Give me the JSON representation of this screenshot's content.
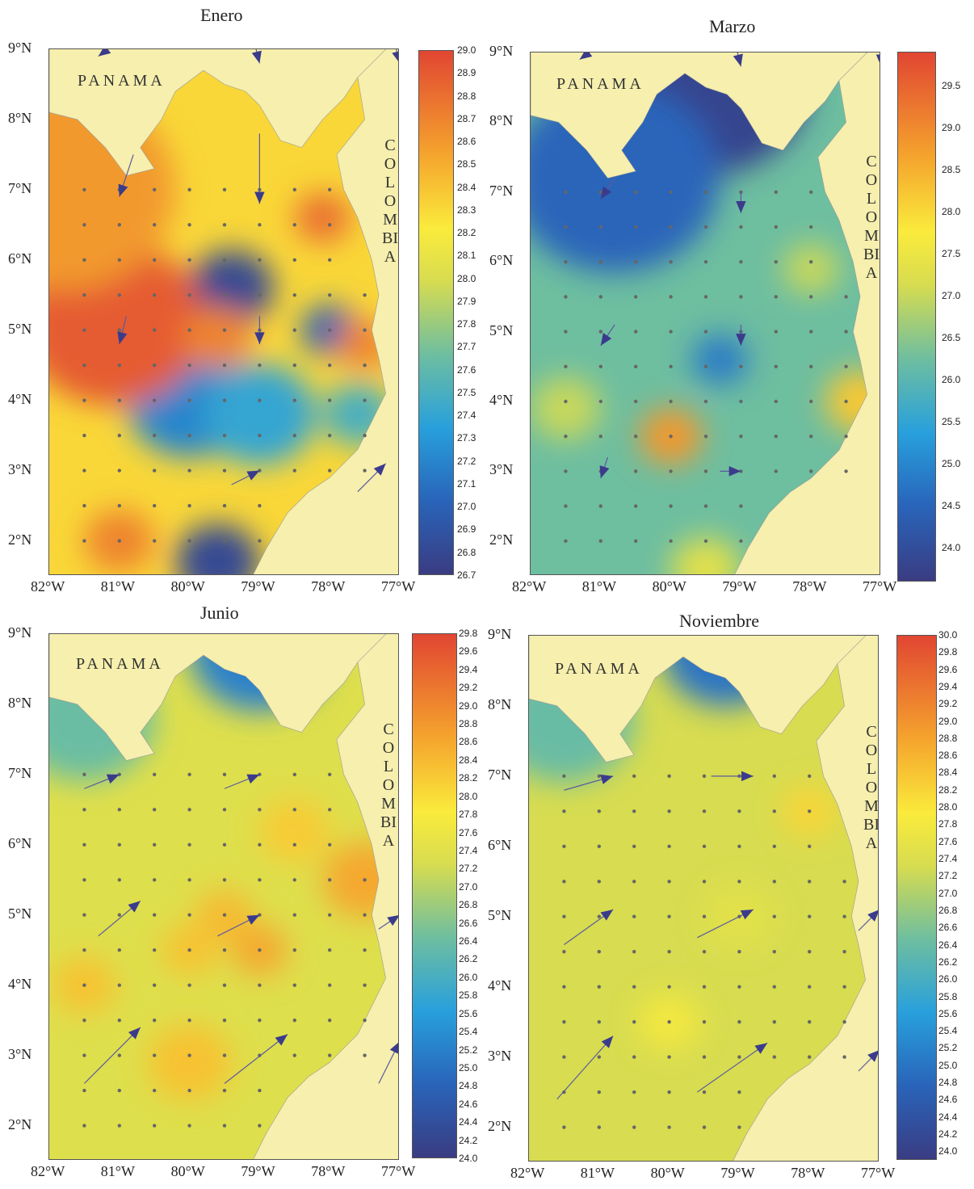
{
  "figure": {
    "panels": [
      {
        "title": "Enero",
        "country_labels": {
          "left": "PANAMA",
          "right": "COLOMBIA"
        },
        "lat_ticks": [
          "9°N",
          "8°N",
          "7°N",
          "6°N",
          "5°N",
          "4°N",
          "3°N",
          "2°N"
        ],
        "lon_ticks": [
          "82°W",
          "81°W",
          "80°W",
          "79°W",
          "78°W",
          "77°W"
        ],
        "colorbar_ticks": [
          "29.0",
          "28.9",
          "28.8",
          "28.7",
          "28.6",
          "28.5",
          "28.4",
          "28.3",
          "28.2",
          "28.1",
          "28.0",
          "27.9",
          "27.8",
          "27.7",
          "27.6",
          "27.5",
          "27.4",
          "27.3",
          "27.2",
          "27.1",
          "27.0",
          "26.9",
          "26.8",
          "26.7"
        ],
        "colorbar_range": [
          26.7,
          29.0
        ],
        "hot_spots": [
          {
            "lon": -81.1,
            "lat": 5.1,
            "value": 28.9,
            "r": 1.3
          },
          {
            "lon": -81.8,
            "lat": 7.0,
            "value": 28.6,
            "r": 1.6
          },
          {
            "lon": -78.1,
            "lat": 6.6,
            "value": 28.8,
            "r": 0.4
          },
          {
            "lon": -79.6,
            "lat": 4.9,
            "value": 28.7,
            "r": 0.5
          },
          {
            "lon": -77.5,
            "lat": 4.8,
            "value": 28.7,
            "r": 0.4
          },
          {
            "lon": -81.0,
            "lat": 2.0,
            "value": 28.7,
            "r": 0.5
          }
        ],
        "cold_spots": [
          {
            "lon": -79.4,
            "lat": 5.6,
            "value": 26.8,
            "r": 0.6
          },
          {
            "lon": -80.0,
            "lat": 4.0,
            "value": 27.2,
            "r": 0.9
          },
          {
            "lon": -79.0,
            "lat": 3.8,
            "value": 27.4,
            "r": 0.8
          },
          {
            "lon": -78.0,
            "lat": 5.0,
            "value": 27.0,
            "r": 0.4
          },
          {
            "lon": -79.6,
            "lat": 1.7,
            "value": 26.8,
            "r": 0.6
          },
          {
            "lon": -77.6,
            "lat": 3.8,
            "value": 27.5,
            "r": 0.5
          }
        ]
      },
      {
        "title": "Marzo",
        "country_labels": {
          "left": "PANAMA",
          "right": "COLOMBIA"
        },
        "lat_ticks": [
          "9°N",
          "8°N",
          "7°N",
          "6°N",
          "5°N",
          "4°N",
          "3°N",
          "2°N"
        ],
        "lon_ticks": [
          "82°W",
          "81°W",
          "80°W",
          "79°W",
          "78°W",
          "77°W"
        ],
        "colorbar_ticks": [
          "29.5",
          "29.0",
          "28.5",
          "28.0",
          "27.5",
          "27.0",
          "26.5",
          "26.0",
          "25.5",
          "25.0",
          "24.5",
          "24.0"
        ],
        "colorbar_range": [
          23.6,
          29.9
        ],
        "hot_spots": [
          {
            "lon": -80.0,
            "lat": 3.5,
            "value": 28.8,
            "r": 0.45
          },
          {
            "lon": -77.3,
            "lat": 4.0,
            "value": 28.2,
            "r": 0.5
          },
          {
            "lon": -79.5,
            "lat": 1.6,
            "value": 27.3,
            "r": 0.5
          },
          {
            "lon": -78.0,
            "lat": 5.9,
            "value": 27.0,
            "r": 0.4
          },
          {
            "lon": -81.5,
            "lat": 3.9,
            "value": 27.0,
            "r": 0.5
          }
        ],
        "cold_spots": [
          {
            "lon": -79.5,
            "lat": 8.6,
            "value": 23.8,
            "r": 1.5
          },
          {
            "lon": -80.8,
            "lat": 7.2,
            "value": 24.5,
            "r": 1.5
          },
          {
            "lon": -79.3,
            "lat": 4.6,
            "value": 24.8,
            "r": 0.4
          }
        ]
      },
      {
        "title": "Junio",
        "country_labels": {
          "left": "PANAMA",
          "right": "COLOMBIA"
        },
        "lat_ticks": [
          "9°N",
          "8°N",
          "7°N",
          "6°N",
          "5°N",
          "4°N",
          "3°N",
          "2°N"
        ],
        "lon_ticks": [
          "82°W",
          "81°W",
          "80°W",
          "79°W",
          "78°W",
          "77°W"
        ],
        "colorbar_ticks": [
          "29.8",
          "29.6",
          "29.4",
          "29.2",
          "29.0",
          "28.8",
          "28.6",
          "28.4",
          "28.2",
          "28.0",
          "27.8",
          "27.6",
          "27.4",
          "27.2",
          "27.0",
          "26.8",
          "26.6",
          "26.4",
          "26.2",
          "26.0",
          "25.8",
          "25.6",
          "25.4",
          "25.2",
          "25.0",
          "24.8",
          "24.6",
          "24.4",
          "24.2",
          "24.0"
        ],
        "colorbar_range": [
          24.0,
          29.8
        ],
        "hot_spots": [
          {
            "lon": -79.0,
            "lat": 4.5,
            "value": 28.6,
            "r": 0.4
          },
          {
            "lon": -79.5,
            "lat": 5.0,
            "value": 28.4,
            "r": 0.4
          },
          {
            "lon": -80.0,
            "lat": 4.5,
            "value": 28.3,
            "r": 0.4
          },
          {
            "lon": -81.5,
            "lat": 4.0,
            "value": 28.3,
            "r": 0.45
          },
          {
            "lon": -77.5,
            "lat": 5.5,
            "value": 28.6,
            "r": 0.6
          },
          {
            "lon": -78.5,
            "lat": 6.2,
            "value": 28.2,
            "r": 0.5
          },
          {
            "lon": -80.0,
            "lat": 2.9,
            "value": 28.3,
            "r": 0.6
          }
        ],
        "cold_spots": [
          {
            "lon": -79.0,
            "lat": 8.8,
            "value": 25.2,
            "r": 1.0
          },
          {
            "lon": -81.5,
            "lat": 7.8,
            "value": 26.4,
            "r": 1.0
          }
        ]
      },
      {
        "title": "Noviembre",
        "country_labels": {
          "left": "PANAMA",
          "right": "COLOMBIA"
        },
        "lat_ticks": [
          "9°N",
          "8°N",
          "7°N",
          "6°N",
          "5°N",
          "4°N",
          "3°N",
          "2°N"
        ],
        "lon_ticks": [
          "82°W",
          "81°W",
          "80°W",
          "79°W",
          "78°W",
          "77°W"
        ],
        "colorbar_ticks": [
          "30.0",
          "29.8",
          "29.6",
          "29.4",
          "29.2",
          "29.0",
          "28.8",
          "28.6",
          "28.4",
          "28.2",
          "28.0",
          "27.8",
          "27.6",
          "27.4",
          "27.2",
          "27.0",
          "26.8",
          "26.6",
          "26.4",
          "26.2",
          "26.0",
          "25.8",
          "25.6",
          "25.4",
          "25.2",
          "25.0",
          "24.8",
          "24.6",
          "24.4",
          "24.2",
          "24.0"
        ],
        "colorbar_range": [
          23.9,
          30.0
        ],
        "hot_spots": [
          {
            "lon": -78.0,
            "lat": 6.5,
            "value": 28.2,
            "r": 0.4
          },
          {
            "lon": -80.0,
            "lat": 3.5,
            "value": 27.8,
            "r": 0.45
          },
          {
            "lon": -79.0,
            "lat": 5.0,
            "value": 27.5,
            "r": 0.5
          }
        ],
        "cold_spots": [
          {
            "lon": -79.2,
            "lat": 8.8,
            "value": 25.0,
            "r": 0.9
          },
          {
            "lon": -81.5,
            "lat": 7.8,
            "value": 26.4,
            "r": 1.0
          }
        ]
      }
    ]
  }
}
